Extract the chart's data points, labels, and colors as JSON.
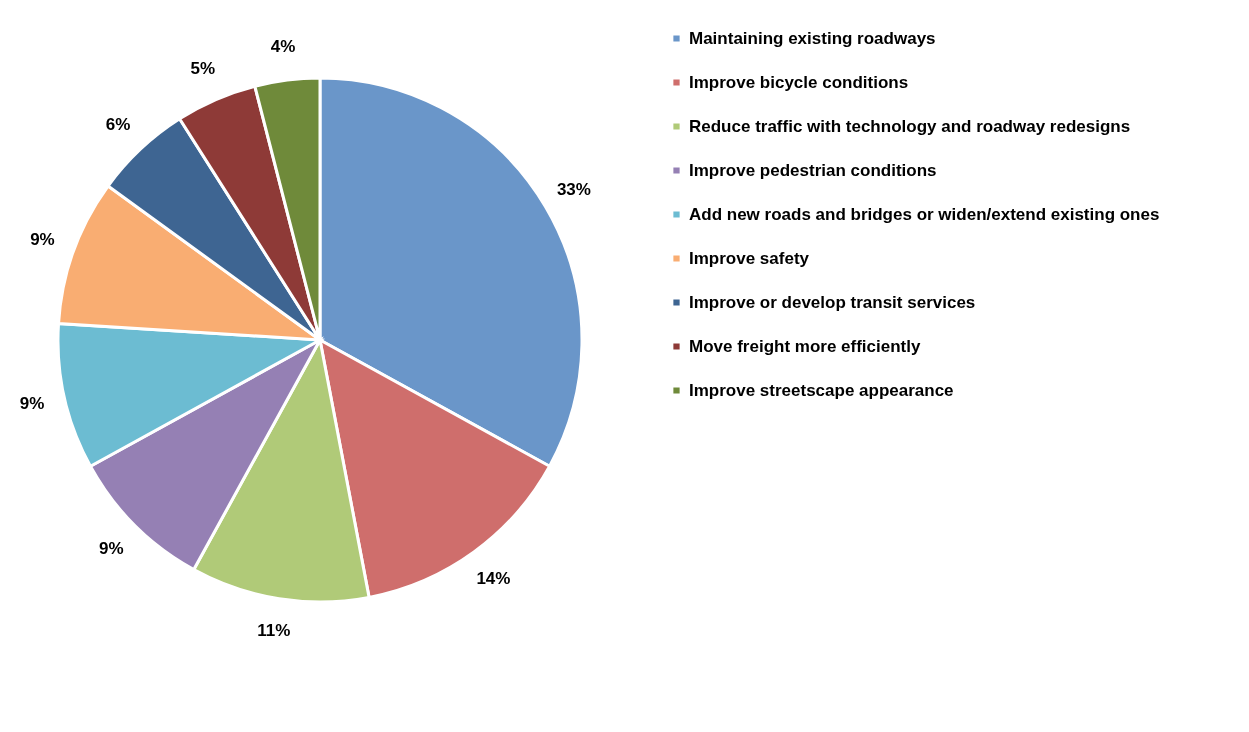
{
  "chart_data": {
    "type": "pie",
    "categories": [
      "Maintaining existing roadways",
      "Improve bicycle conditions",
      "Reduce traffic with technology and roadway redesigns",
      "Improve pedestrian conditions",
      "Add new roads and bridges or widen/extend existing ones",
      "Improve safety",
      "Improve or develop transit services",
      "Move freight more efficiently",
      "Improve streetscape appearance"
    ],
    "values": [
      33,
      14,
      11,
      9,
      9,
      9,
      6,
      5,
      4
    ],
    "value_labels": [
      "33%",
      "14%",
      "11%",
      "9%",
      "9%",
      "9%",
      "6%",
      "5%",
      "4%"
    ],
    "colors": [
      "#6a96c9",
      "#cf6e6c",
      "#b0ca78",
      "#9580b4",
      "#6cbcd2",
      "#f9ad72",
      "#3e6592",
      "#8e3a37",
      "#6f8a3a"
    ],
    "legend": "right"
  }
}
